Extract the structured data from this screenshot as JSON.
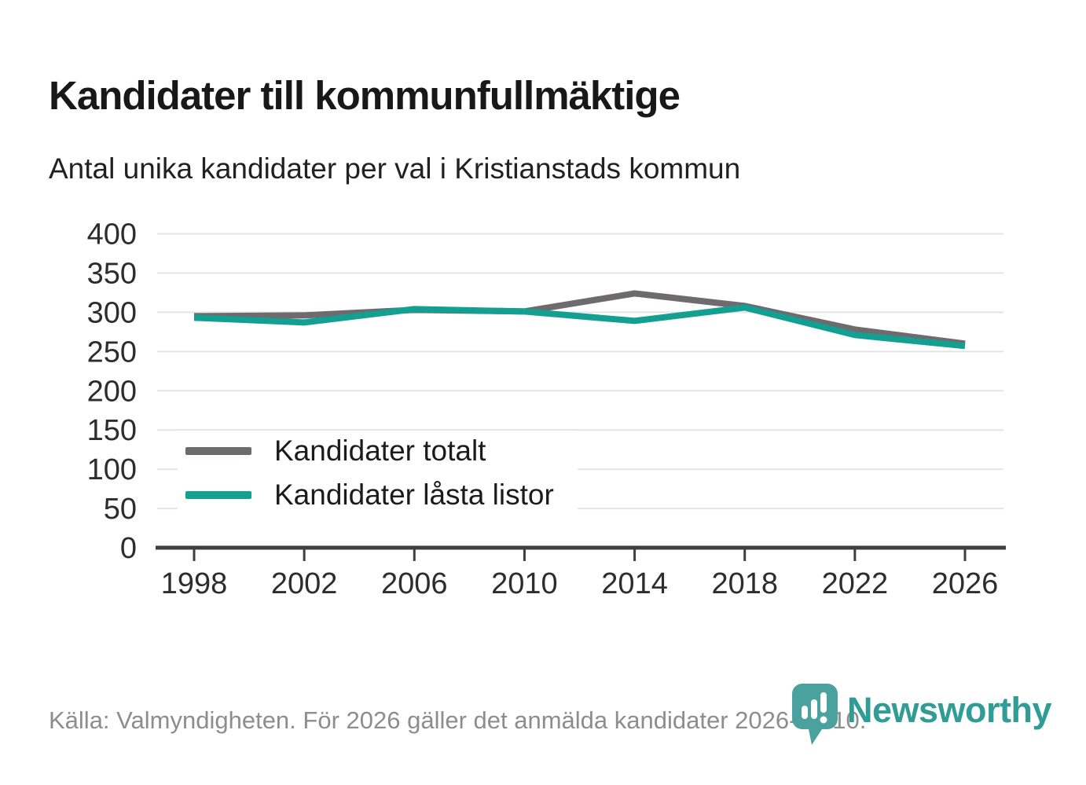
{
  "header": {
    "title": "Kandidater till kommunfullmäktige",
    "subtitle": "Antal unika kandidater per val i Kristianstads kommun"
  },
  "chart_data": {
    "type": "line",
    "title": "Kandidater till kommunfullmäktige",
    "subtitle": "Antal unika kandidater per val i Kristianstads kommun",
    "x": [
      1998,
      2002,
      2006,
      2010,
      2014,
      2018,
      2022,
      2026
    ],
    "series": [
      {
        "name": "Kandidater totalt",
        "color": "#6e6a6e",
        "values": [
          295,
          296,
          303,
          301,
          324,
          308,
          278,
          260
        ]
      },
      {
        "name": "Kandidater låsta listor",
        "color": "#13a093",
        "values": [
          293,
          287,
          304,
          301,
          289,
          306,
          271,
          257
        ]
      }
    ],
    "xlabel": "",
    "ylabel": "",
    "ylim": [
      0,
      400
    ],
    "yticks": [
      0,
      50,
      100,
      150,
      200,
      250,
      300,
      350,
      400
    ],
    "grid": true,
    "legend_position": "inside-bottom-left"
  },
  "colors": {
    "grid": "#e4e4e4",
    "axis": "#3f3f3f",
    "tick_label": "#2d2d2d",
    "title": "#181818",
    "subtitle": "#212121",
    "footer_text": "#8d8d8d",
    "brand_text": "#2f9c95",
    "logo_pin": "#4ba19e"
  },
  "footer": {
    "source_text": "Källa: Valmyndigheten. För 2026 gäller det anmälda kandidater 2026-04-10.",
    "brand": "Newsworthy"
  }
}
